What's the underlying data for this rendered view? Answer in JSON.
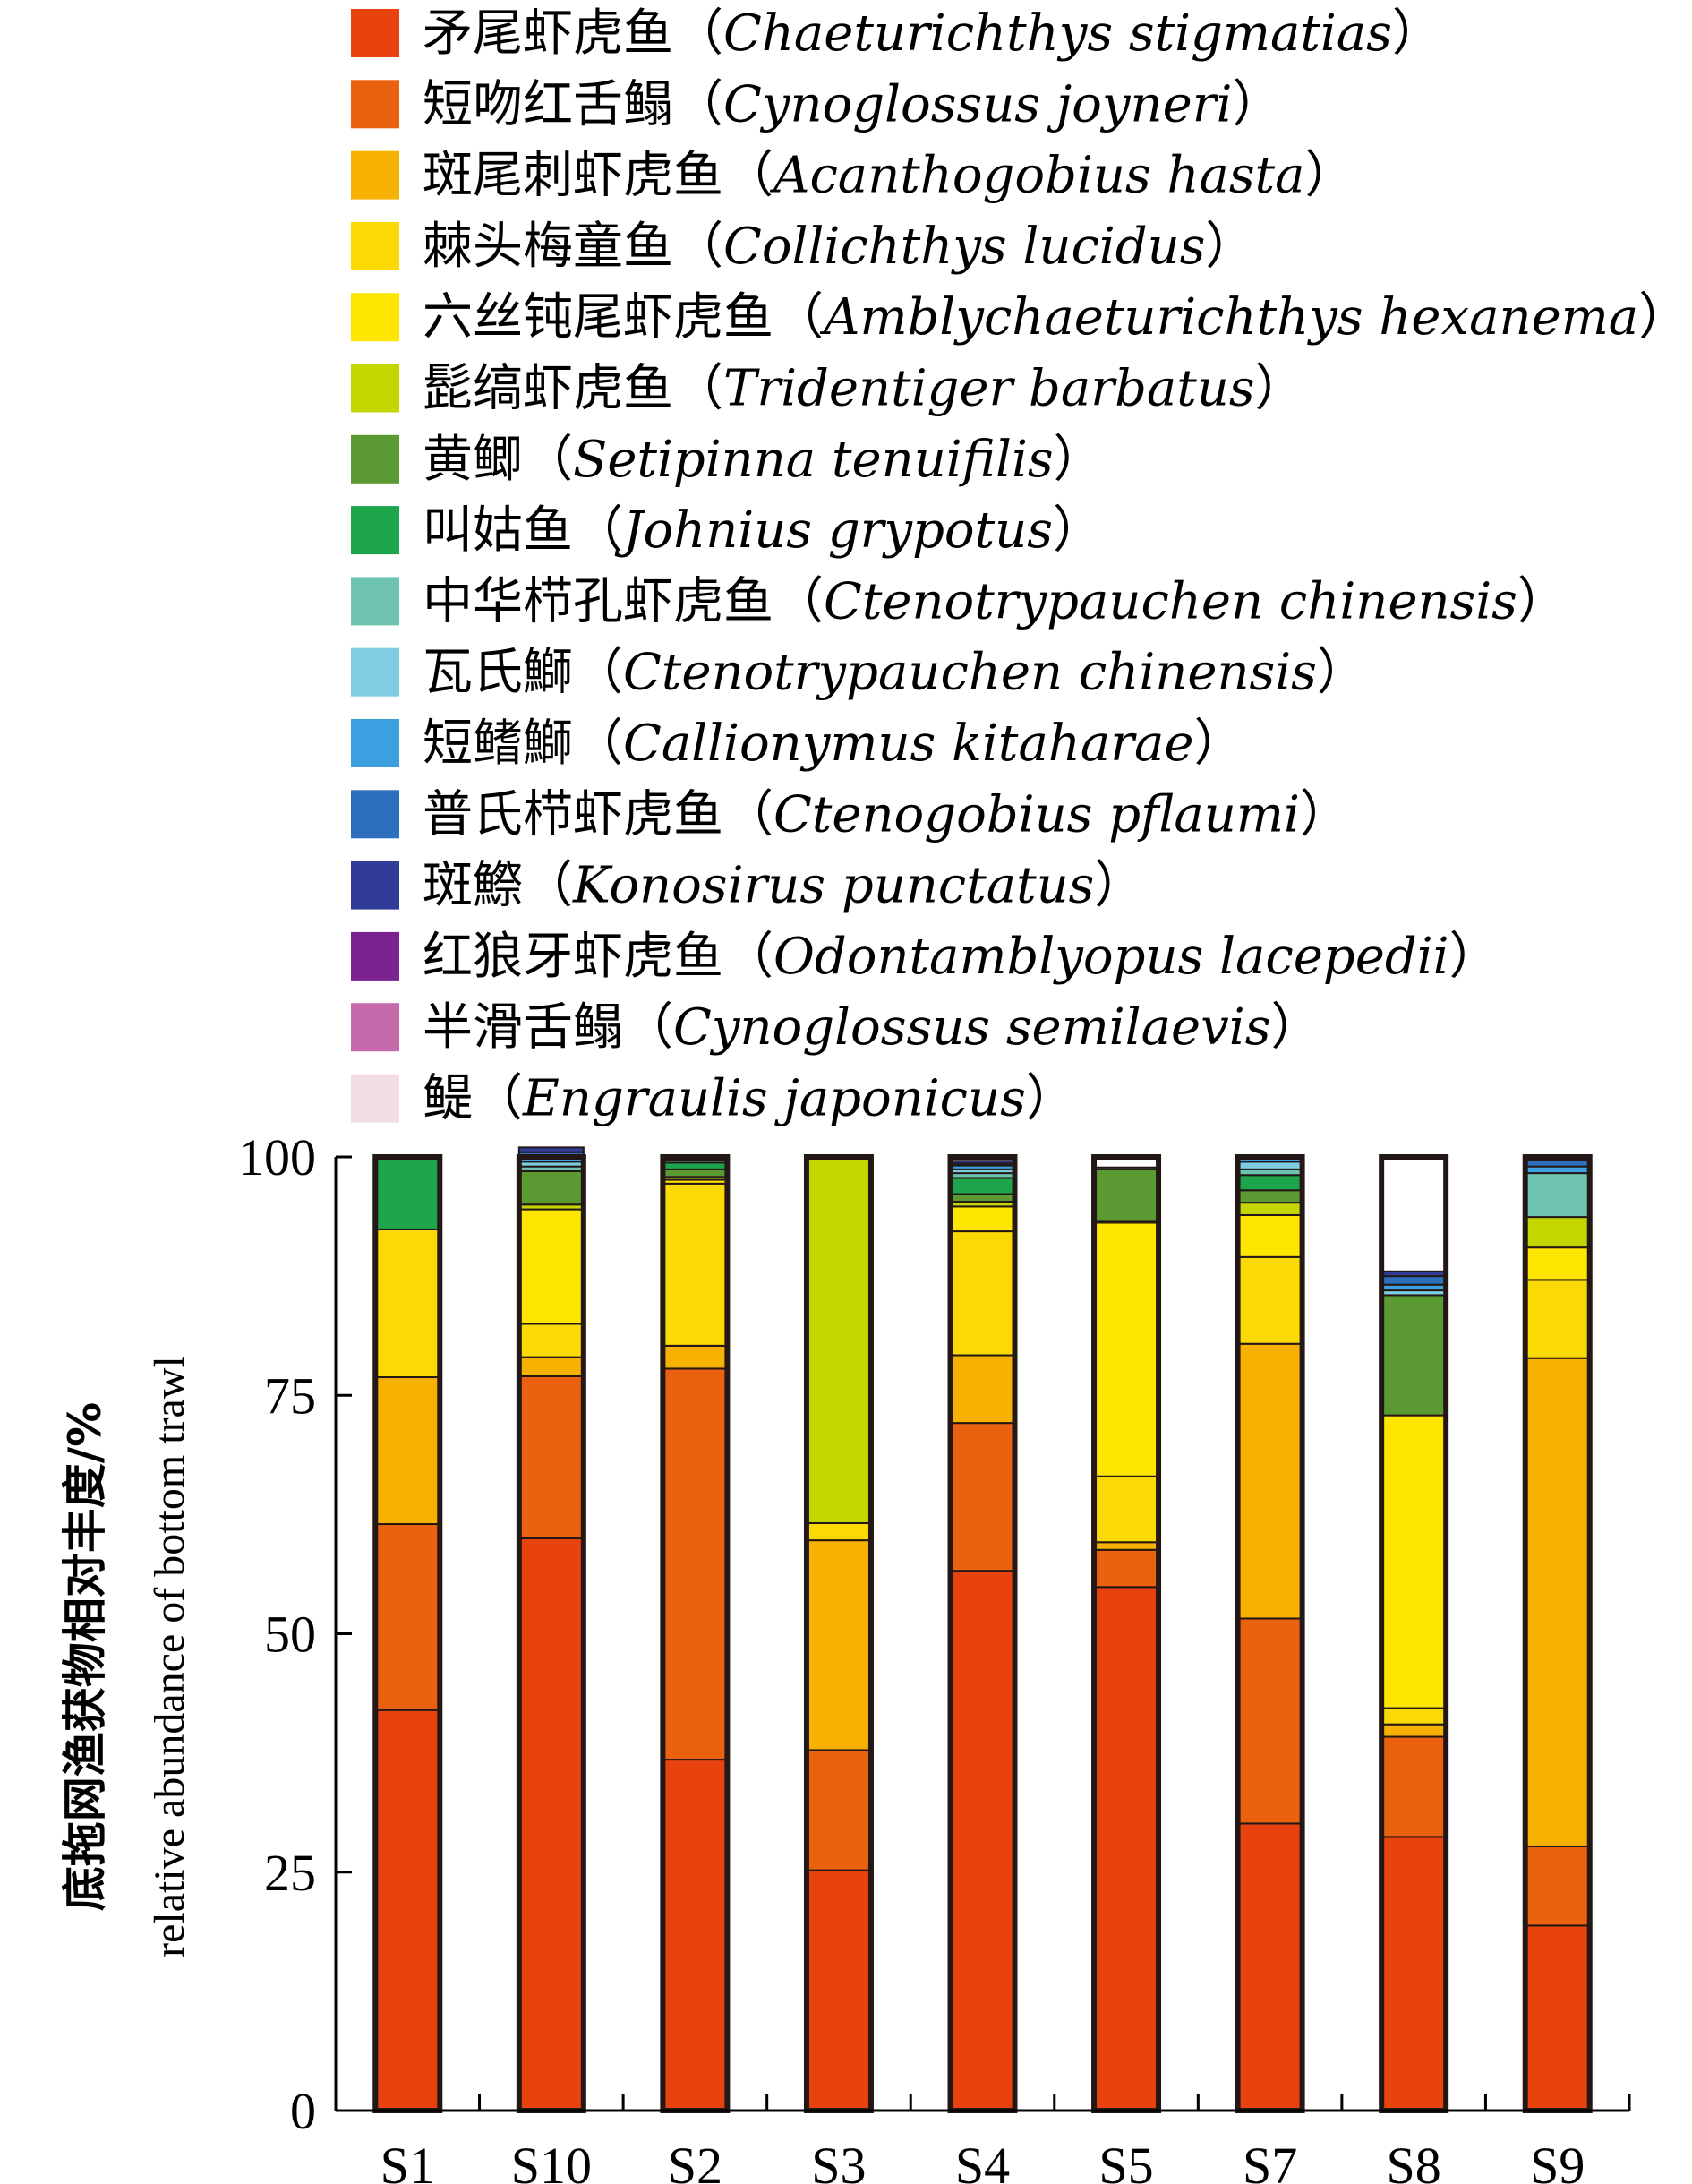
{
  "chart_data": {
    "type": "bar",
    "stacked": true,
    "ylim": [
      0,
      100
    ],
    "yticks": [
      "0",
      "25",
      "50",
      "75",
      "100"
    ],
    "ylabel_cn": "底拖网渔获物相对丰度/%",
    "ylabel_en": "relative abundance of bottom trawl",
    "categories": [
      "S1",
      "S10",
      "S2",
      "S3",
      "S4",
      "S5",
      "S7",
      "S8",
      "S9"
    ],
    "legend_placement": "top",
    "series": [
      {
        "name": "矛尾虾虎鱼（Chaeturichthys stigmatias）",
        "cn": "矛尾虾虎鱼",
        "sci": "Chaeturichthys stigmatias",
        "color": "#e8420f",
        "values": [
          42.0,
          60.0,
          36.8,
          25.2,
          56.6,
          54.9,
          30.1,
          28.7,
          19.4
        ]
      },
      {
        "name": "短吻红舌鳎（Cynoglossus joyneri）",
        "cn": "短吻红舌鳎",
        "sci": "Cynoglossus joyneri",
        "color": "#ea6110",
        "values": [
          19.5,
          17.0,
          41.0,
          12.6,
          15.5,
          3.9,
          21.5,
          10.5,
          8.3
        ]
      },
      {
        "name": "斑尾刺虾虎鱼（Acanthogobius hasta）",
        "cn": "斑尾刺虾虎鱼",
        "sci": "Acanthogobius hasta",
        "color": "#f6b103",
        "values": [
          15.4,
          2.0,
          2.4,
          22.0,
          7.1,
          0.8,
          28.8,
          1.3,
          51.2
        ]
      },
      {
        "name": "棘头梅童鱼（Collichthys lucidus）",
        "cn": "棘头梅童鱼",
        "sci": "Collichthys lucidus",
        "color": "#fbd904",
        "values": [
          15.5,
          3.5,
          17.0,
          1.8,
          13.0,
          6.9,
          9.1,
          1.7,
          8.2
        ]
      },
      {
        "name": "六丝钝尾虾虎鱼（Amblychaeturichthys hexanema）",
        "cn": "六丝钝尾虾虎鱼",
        "sci": "Amblychaeturichthys hexanema",
        "color": "#ffe600",
        "values": [
          0,
          12.0,
          0.4,
          0,
          2.6,
          26.6,
          4.4,
          30.7,
          3.4
        ]
      },
      {
        "name": "髭缟虾虎鱼（Tridentiger barbatus）",
        "cn": "髭缟虾虎鱼",
        "sci": "Tridentiger barbatus",
        "color": "#c3d600",
        "values": [
          0,
          0.5,
          0.3,
          38.4,
          0.5,
          0.1,
          1.3,
          0,
          3.2
        ]
      },
      {
        "name": "黄鲫（Setipinna tenuifilis）",
        "cn": "黄鲫",
        "sci": "Setipinna tenuifilis",
        "color": "#5b9a32",
        "values": [
          0,
          3.5,
          0.8,
          0,
          0.8,
          5.5,
          1.3,
          12.6,
          0
        ]
      },
      {
        "name": "叫姑鱼（Johnius grypotus）",
        "cn": "叫姑鱼",
        "sci": "Johnius grypotus",
        "color": "#1ea44b",
        "values": [
          7.6,
          0,
          0.7,
          0,
          1.7,
          0,
          1.6,
          0,
          0
        ]
      },
      {
        "name": "中华栉孔虾虎鱼（Ctenotrypauchen chinensis）",
        "cn": "中华栉孔虾虎鱼",
        "sci": "Ctenotrypauchen chinensis",
        "color": "#6fc4b1",
        "values": [
          0,
          0.5,
          0.3,
          0,
          0.5,
          0.2,
          0.6,
          0,
          4.6
        ]
      },
      {
        "name": "瓦氏鰤（Ctenotrypauchen chinensis）",
        "cn": "瓦氏鰤",
        "sci": "Ctenotrypauchen chinensis",
        "color": "#7fcde0",
        "values": [
          0,
          0.5,
          0.1,
          0,
          0.4,
          0,
          0.8,
          0.5,
          0
        ]
      },
      {
        "name": "短鳍鰤（Callionymus kitaharae）",
        "cn": "短鳍鰤",
        "sci": "Callionymus kitaharae",
        "color": "#3c9fdf",
        "values": [
          0,
          0.5,
          0.1,
          0,
          0.4,
          0,
          0.4,
          0.6,
          0.7
        ]
      },
      {
        "name": "普氏栉虾虎鱼（Ctenogobius pflaumi）",
        "cn": "普氏栉虾虎鱼",
        "sci": "Ctenogobius pflaumi",
        "color": "#2e6fbd",
        "values": [
          0,
          0.5,
          0.1,
          0,
          0.2,
          0,
          0.1,
          0.9,
          0.7
        ]
      },
      {
        "name": "斑鰶（Konosirus punctatus）",
        "cn": "斑鰶",
        "sci": "Konosirus punctatus",
        "color": "#313c99",
        "values": [
          0,
          0.5,
          0,
          0,
          0.3,
          0,
          0,
          0.5,
          0.3
        ]
      },
      {
        "name": "红狼牙虾虎鱼（Odontamblyopus lacepedii）",
        "cn": "红狼牙虾虎鱼",
        "sci": "Odontamblyopus lacepedii",
        "color": "#7b2490",
        "values": [
          0,
          0,
          0,
          0,
          0,
          0,
          0,
          0,
          0
        ]
      },
      {
        "name": "半滑舌鳎（Cynoglossus semilaevis）",
        "cn": "半滑舌鳎",
        "sci": "Cynoglossus semilaevis",
        "color": "#c66aab",
        "values": [
          0,
          0,
          0,
          0,
          0,
          0,
          0,
          0,
          0
        ]
      },
      {
        "name": "鳀（Engraulis japonicus）",
        "cn": "鳀",
        "sci": "Engraulis japonicus",
        "color": "#f1dde2",
        "values": [
          0,
          0,
          0,
          0,
          0,
          0,
          0,
          0,
          0
        ]
      }
    ]
  }
}
